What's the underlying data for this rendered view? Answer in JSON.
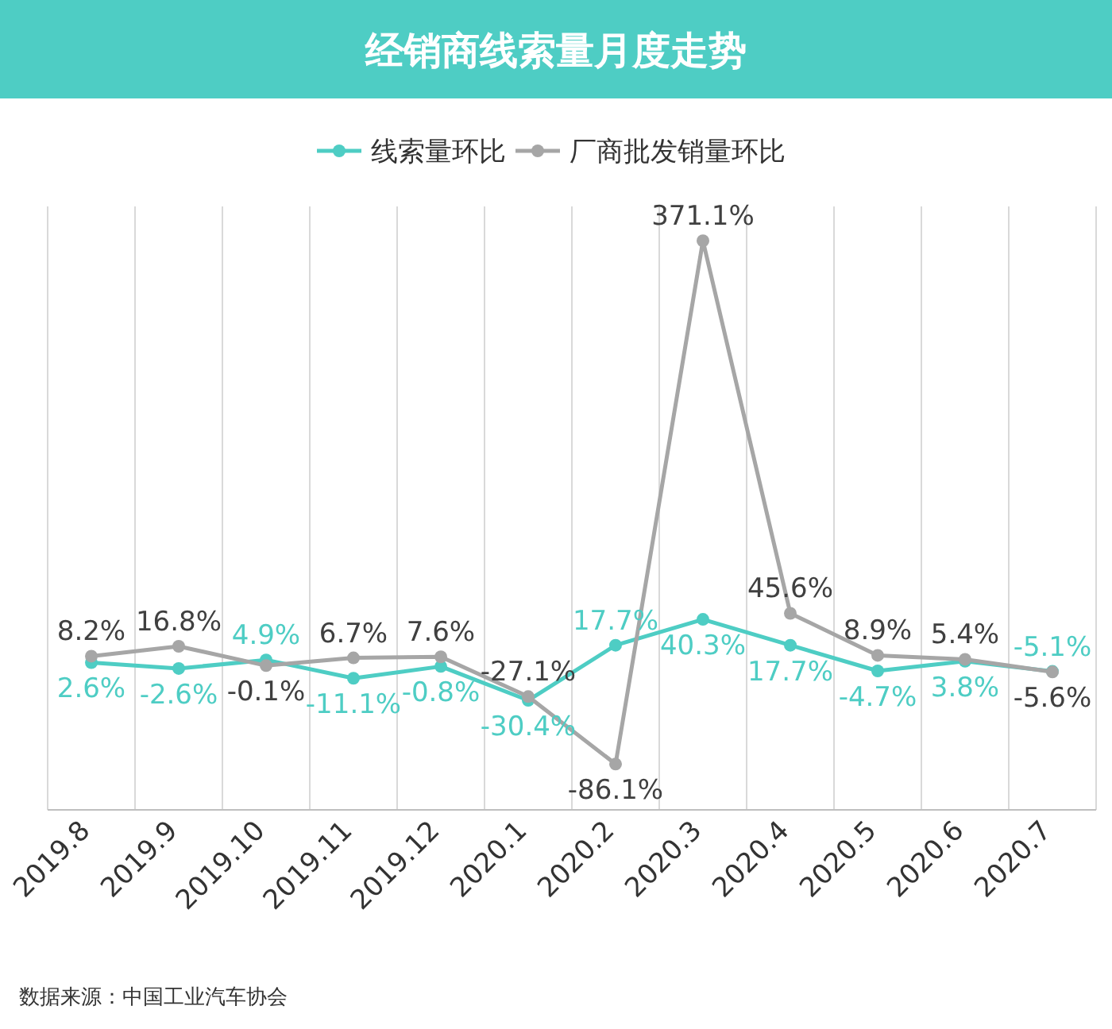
{
  "chart_data": {
    "type": "line",
    "title": "经销商线索量月度走势",
    "categories": [
      "2019.8",
      "2019.9",
      "2019.10",
      "2019.11",
      "2019.12",
      "2020.1",
      "2020.2",
      "2020.3",
      "2020.4",
      "2020.5",
      "2020.6",
      "2020.7"
    ],
    "series": [
      {
        "name": "线索量环比",
        "color": "#4ecdc4",
        "values": [
          2.6,
          -2.6,
          4.9,
          -11.1,
          -0.8,
          -30.4,
          17.7,
          40.3,
          17.7,
          -4.7,
          3.8,
          -5.1
        ],
        "value_labels": [
          "2.6%",
          "-2.6%",
          "4.9%",
          "-11.1%",
          "-0.8%",
          "-30.4%",
          "17.7%",
          "40.3%",
          "17.7%",
          "-4.7%",
          "3.8%",
          "-5.1%"
        ]
      },
      {
        "name": "厂商批发销量环比",
        "color": "#a6a6a6",
        "values": [
          8.2,
          16.8,
          -0.1,
          6.7,
          7.6,
          -27.1,
          -86.1,
          371.1,
          45.6,
          8.9,
          5.4,
          -5.6
        ],
        "value_labels": [
          "8.2%",
          "16.8%",
          "-0.1%",
          "6.7%",
          "7.6%",
          "-27.1%",
          "-86.1%",
          "371.1%",
          "45.6%",
          "8.9%",
          "5.4%",
          "-5.6%"
        ]
      }
    ],
    "tick_labels": "x",
    "grid": "x",
    "legend": "top",
    "marker": "circle",
    "line_style": "solid",
    "annotations": [
      "数据来源：中国工业汽车协会"
    ]
  }
}
